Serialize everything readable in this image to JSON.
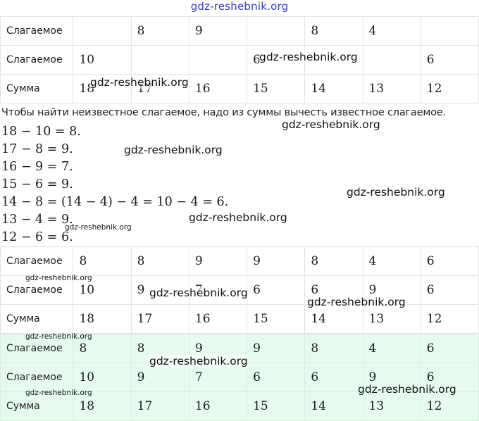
{
  "header": {
    "site": "gdz-reshebnik.org"
  },
  "table1": {
    "rows": [
      {
        "label": "Слагаемое",
        "cells": [
          "",
          "8",
          "9",
          "",
          "8",
          "4",
          ""
        ]
      },
      {
        "label": "Слагаемое",
        "cells": [
          "10",
          "",
          "",
          "6",
          "",
          "",
          "6"
        ]
      },
      {
        "label": "Сумма",
        "cells": [
          "18",
          "17",
          "16",
          "15",
          "14",
          "13",
          "12"
        ]
      }
    ]
  },
  "rule": "Чтобы найти неизвестное слагаемое, надо из суммы вычесть известное слагаемое.",
  "equations": [
    "18 − 10 = 8.",
    "17 − 8 = 9.",
    "16 − 9 = 7.",
    "15 − 6 = 9.",
    "14 − 8 = (14 − 4) − 4 = 10 − 4 = 6.",
    "13 − 4 = 9.",
    "12 − 6 = 6."
  ],
  "table2": {
    "rows": [
      {
        "label": "Слагаемое",
        "cells": [
          "8",
          "8",
          "9",
          "9",
          "8",
          "4",
          "6"
        ]
      },
      {
        "label": "Слагаемое",
        "cells": [
          "10",
          "9",
          "7",
          "6",
          "6",
          "9",
          "6"
        ]
      },
      {
        "label": "Сумма",
        "cells": [
          "18",
          "17",
          "16",
          "15",
          "14",
          "13",
          "12"
        ]
      }
    ]
  },
  "table3": {
    "highlight_color": "#e6fbee",
    "rows": [
      {
        "label": "Слагаемое",
        "cells": [
          "8",
          "8",
          "9",
          "9",
          "8",
          "4",
          "6"
        ]
      },
      {
        "label": "Слагаемое",
        "cells": [
          "10",
          "9",
          "7",
          "6",
          "6",
          "9",
          "6"
        ]
      },
      {
        "label": "Сумма",
        "cells": [
          "18",
          "17",
          "16",
          "15",
          "14",
          "13",
          "12"
        ]
      }
    ]
  },
  "watermark": "gdz-reshebnik.org"
}
